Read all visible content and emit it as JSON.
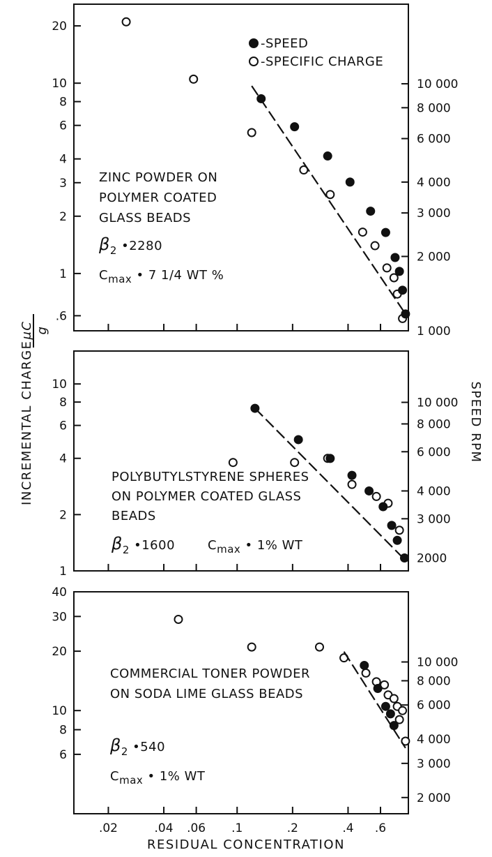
{
  "axis_titles": {
    "y_left": "INCREMENTAL CHARGE",
    "y_left_unit_num": "μC",
    "y_left_unit_den": "g",
    "y_right": "SPEED RPM",
    "x": "RESIDUAL CONCENTRATION"
  },
  "legend": {
    "speed": "-SPEED",
    "charge": "-SPECIFIC CHARGE"
  },
  "chart_data": [
    {
      "type": "scatter",
      "panel": "top",
      "label_lines": [
        "ZINC POWDER ON",
        "POLYMER COATED",
        "GLASS BEADS"
      ],
      "beta_symbol": "β",
      "beta_sub": "2",
      "beta_value": "2280",
      "cmax_prefix": "C",
      "cmax_sub": "max",
      "cmax_value": "7 1/4 WT %",
      "x_scale": "log",
      "xlim": [
        0.013,
        0.85
      ],
      "y_scale": "log",
      "ylim": [
        0.5,
        26
      ],
      "y_ticks": [
        {
          "v": 20,
          "label": "20"
        },
        {
          "v": 10,
          "label": "10"
        },
        {
          "v": 8,
          "label": "8"
        },
        {
          "v": 6,
          "label": "6"
        },
        {
          "v": 4,
          "label": "4"
        },
        {
          "v": 3,
          "label": "3"
        },
        {
          "v": 2,
          "label": "2"
        },
        {
          "v": 1,
          "label": "1"
        },
        {
          "v": 0.6,
          "label": ".6"
        }
      ],
      "y2_scale": "log",
      "y2lim": [
        1000,
        21000
      ],
      "y2_ticks": [
        {
          "v": 10000,
          "label": "10 000"
        },
        {
          "v": 8000,
          "label": "8 000"
        },
        {
          "v": 6000,
          "label": "6 000"
        },
        {
          "v": 4000,
          "label": "4 000"
        },
        {
          "v": 3000,
          "label": "3 000"
        },
        {
          "v": 2000,
          "label": "2 000"
        },
        {
          "v": 1000,
          "label": "1 000"
        }
      ],
      "series": [
        {
          "name": "SPECIFIC CHARGE",
          "marker": "open",
          "axis": "left",
          "x": [
            0.025,
            0.058,
            0.12,
            0.23,
            0.32,
            0.48,
            0.56,
            0.65,
            0.71,
            0.74,
            0.79
          ],
          "y": [
            21,
            10.5,
            5.5,
            3.5,
            2.6,
            1.65,
            1.4,
            1.07,
            0.95,
            0.78,
            0.58
          ]
        },
        {
          "name": "SPEED",
          "marker": "filled",
          "axis": "right",
          "x": [
            0.135,
            0.205,
            0.31,
            0.41,
            0.53,
            0.64,
            0.72,
            0.76,
            0.79,
            0.82
          ],
          "y": [
            8700,
            6700,
            5100,
            4000,
            3050,
            2500,
            1980,
            1740,
            1460,
            1170
          ],
          "fit_line": {
            "x": [
              0.12,
              0.82
            ],
            "y": [
              9800,
              1170
            ]
          }
        }
      ]
    },
    {
      "type": "scatter",
      "panel": "middle",
      "label_lines": [
        "POLYBUTYLSTYRENE SPHERES",
        "ON POLYMER COATED GLASS",
        "BEADS"
      ],
      "beta_symbol": "β",
      "beta_sub": "2",
      "beta_value": "1600",
      "cmax_prefix": "C",
      "cmax_sub": "max",
      "cmax_value": "1% WT",
      "x_scale": "log",
      "xlim": [
        0.013,
        0.85
      ],
      "y_scale": "log",
      "ylim": [
        1,
        15
      ],
      "y_ticks": [
        {
          "v": 10,
          "label": "10"
        },
        {
          "v": 8,
          "label": "8"
        },
        {
          "v": 6,
          "label": "6"
        },
        {
          "v": 4,
          "label": "4"
        },
        {
          "v": 2,
          "label": "2"
        },
        {
          "v": 1,
          "label": "1"
        }
      ],
      "y2_scale": "log",
      "y2lim": [
        1750,
        17000
      ],
      "y2_ticks": [
        {
          "v": 10000,
          "label": "10 000"
        },
        {
          "v": 8000,
          "label": "8 000"
        },
        {
          "v": 6000,
          "label": "6 000"
        },
        {
          "v": 4000,
          "label": "4 000"
        },
        {
          "v": 3000,
          "label": "3 000"
        },
        {
          "v": 2000,
          "label": "2000"
        }
      ],
      "series": [
        {
          "name": "SPECIFIC CHARGE",
          "marker": "open",
          "axis": "left",
          "x": [
            0.095,
            0.205,
            0.31,
            0.42,
            0.57,
            0.66,
            0.76
          ],
          "y": [
            3.8,
            3.8,
            4.0,
            2.9,
            2.5,
            2.3,
            1.65
          ]
        },
        {
          "name": "SPEED",
          "marker": "filled",
          "axis": "right",
          "x": [
            0.125,
            0.215,
            0.32,
            0.42,
            0.52,
            0.62,
            0.69,
            0.74,
            0.81
          ],
          "y": [
            9400,
            6800,
            5600,
            4700,
            4000,
            3400,
            2800,
            2400,
            2000
          ],
          "fit_line": {
            "x": [
              0.125,
              0.82
            ],
            "y": [
              9400,
              1950
            ]
          }
        }
      ]
    },
    {
      "type": "scatter",
      "panel": "bottom",
      "label_lines": [
        "COMMERCIAL TONER POWDER",
        "ON SODA LIME GLASS BEADS"
      ],
      "beta_symbol": "β",
      "beta_sub": "2",
      "beta_value": "540",
      "cmax_prefix": "C",
      "cmax_sub": "max",
      "cmax_value": "1% WT",
      "x_scale": "log",
      "xlim": [
        0.013,
        0.85
      ],
      "y_scale": "log",
      "ylim": [
        3,
        40
      ],
      "y_ticks": [
        {
          "v": 40,
          "label": "40"
        },
        {
          "v": 30,
          "label": "30"
        },
        {
          "v": 20,
          "label": "20"
        },
        {
          "v": 10,
          "label": "10"
        },
        {
          "v": 8,
          "label": "8"
        },
        {
          "v": 6,
          "label": "6"
        }
      ],
      "y2_scale": "log",
      "y2lim": [
        1650,
        23000
      ],
      "y2_ticks": [
        {
          "v": 10000,
          "label": "10 000"
        },
        {
          "v": 8000,
          "label": "8 000"
        },
        {
          "v": 6000,
          "label": "6 000"
        },
        {
          "v": 4000,
          "label": "4 000"
        },
        {
          "v": 3000,
          "label": "3 000"
        },
        {
          "v": 2000,
          "label": "2 000"
        }
      ],
      "x_ticks": [
        {
          "v": 0.02,
          "label": ".02"
        },
        {
          "v": 0.04,
          "label": ".04"
        },
        {
          "v": 0.06,
          "label": ".06"
        },
        {
          "v": 0.1,
          "label": ".1"
        },
        {
          "v": 0.2,
          "label": ".2"
        },
        {
          "v": 0.4,
          "label": ".4"
        },
        {
          "v": 0.6,
          "label": ".6"
        }
      ],
      "series": [
        {
          "name": "SPECIFIC CHARGE",
          "marker": "open",
          "axis": "left",
          "x": [
            0.048,
            0.12,
            0.28,
            0.38,
            0.5,
            0.57,
            0.63,
            0.66,
            0.71,
            0.74,
            0.76,
            0.79,
            0.82
          ],
          "y": [
            29,
            21,
            21,
            18.5,
            15.5,
            14,
            13.5,
            12,
            11.5,
            10.5,
            9,
            10,
            7
          ],
          "y_mixed_note": ""
        },
        {
          "name": "SPEED",
          "marker": "filled",
          "axis": "right",
          "x": [
            0.49,
            0.58,
            0.64,
            0.68,
            0.71
          ],
          "y": [
            9600,
            7300,
            5900,
            5400,
            4700
          ],
          "fit_line": {
            "x": [
              0.38,
              0.82
            ],
            "y": [
              11300,
              3600
            ]
          }
        }
      ]
    }
  ]
}
